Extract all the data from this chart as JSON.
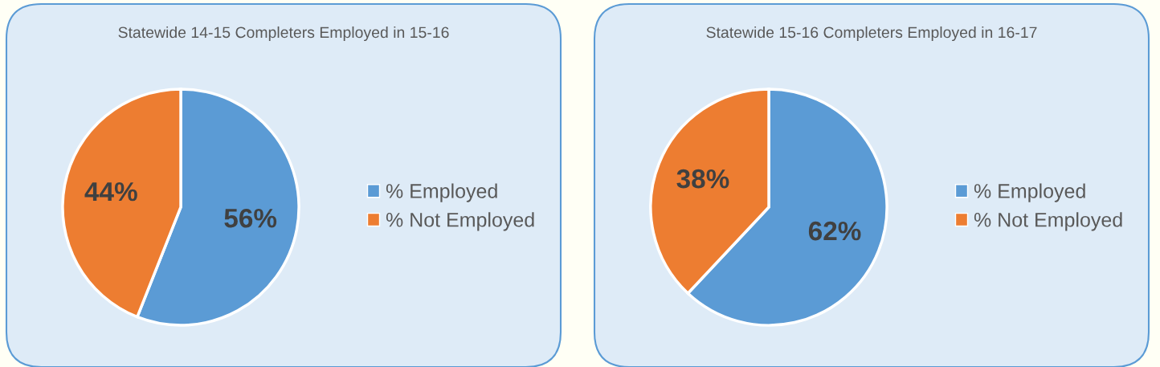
{
  "chart_data": [
    {
      "type": "pie",
      "title": "Statewide 14-15 Completers Employed in 15-16",
      "categories": [
        "% Employed",
        "% Not Employed"
      ],
      "values": [
        56,
        44
      ],
      "colors": [
        "#5b9bd5",
        "#ed7d31"
      ],
      "value_labels": [
        "56%",
        "44%"
      ],
      "legend": "right"
    },
    {
      "type": "pie",
      "title": "Statewide 15-16 Completers Employed in 16-17",
      "categories": [
        "% Employed",
        "% Not Employed"
      ],
      "values": [
        62,
        38
      ],
      "colors": [
        "#5b9bd5",
        "#ed7d31"
      ],
      "value_labels": [
        "62%",
        "38%"
      ],
      "legend": "right"
    }
  ]
}
